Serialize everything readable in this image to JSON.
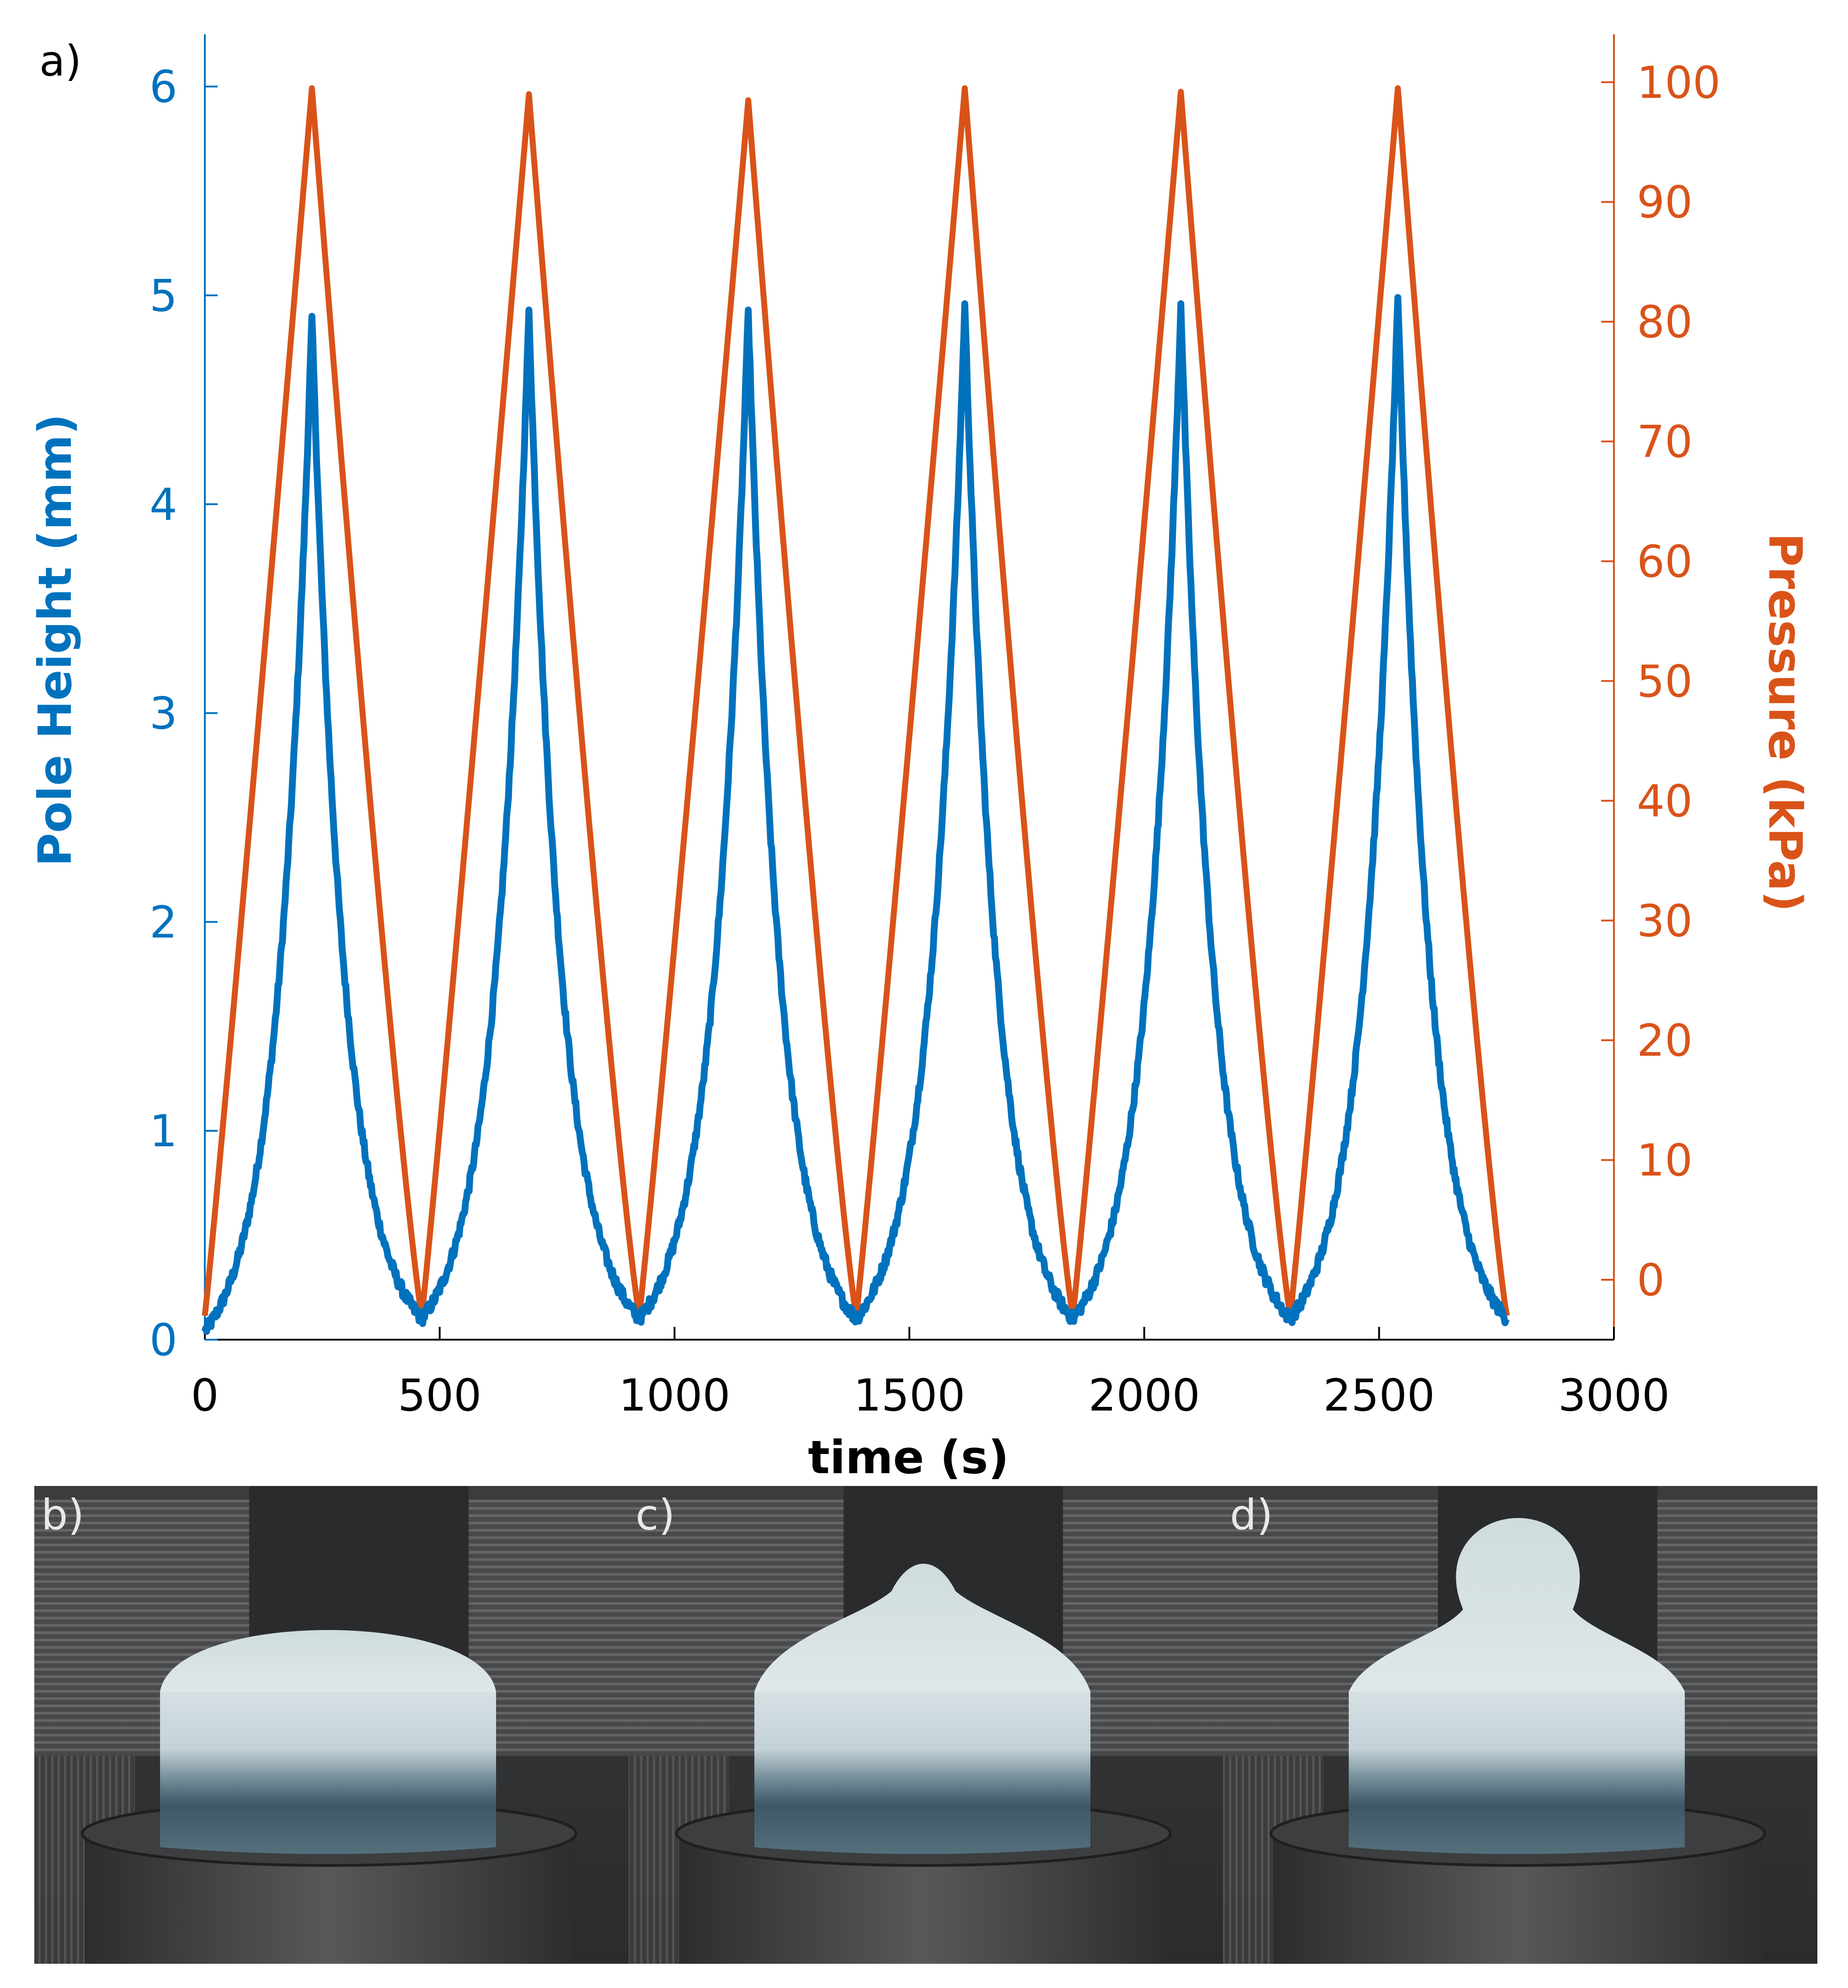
{
  "chart_data": {
    "type": "line",
    "panel_label": "a)",
    "xlabel": "time (s)",
    "ylabel_left": "Pole Height (mm)",
    "ylabel_right": "Pressure (kPa)",
    "xlim": [
      0,
      3000
    ],
    "ylim_left": [
      0,
      6.25
    ],
    "ylim_right": [
      -5,
      104
    ],
    "x_ticks": [
      0,
      500,
      1000,
      1500,
      2000,
      2500,
      3000
    ],
    "y_left_ticks": [
      0,
      1,
      2,
      3,
      4,
      5,
      6
    ],
    "y_right_ticks": [
      0,
      10,
      20,
      30,
      40,
      50,
      60,
      70,
      80,
      90,
      100
    ],
    "grid": false,
    "colors": {
      "left": "#0072BD",
      "right": "#D95319"
    },
    "cycles": {
      "start_times": [
        0,
        462,
        925,
        1387,
        1848,
        2311
      ],
      "peak_times": [
        228,
        690,
        1157,
        1618,
        2078,
        2540
      ],
      "end_times": [
        462,
        925,
        1387,
        1848,
        2311,
        2772
      ],
      "min_height_mm": [
        0.04,
        0.1,
        0.1,
        0.1,
        0.1,
        0.1,
        0.1
      ],
      "peak_height_mm": [
        4.9,
        4.93,
        4.93,
        4.96,
        4.96,
        4.99
      ],
      "min_pressure_kPa": [
        -3,
        -3,
        -3,
        -3,
        -3,
        -3,
        -3
      ],
      "peak_pressure_kPa": [
        99.5,
        99,
        98.5,
        99.5,
        99.2,
        99.5
      ]
    },
    "series": [
      {
        "name": "Pole Height (mm)",
        "axis": "left",
        "color": "#0072BD"
      },
      {
        "name": "Pressure (kPa)",
        "axis": "right",
        "color": "#D95319"
      }
    ]
  },
  "photos": [
    {
      "label": "b)",
      "dome": "flat"
    },
    {
      "label": "c)",
      "dome": "small"
    },
    {
      "label": "d)",
      "dome": "large"
    }
  ]
}
